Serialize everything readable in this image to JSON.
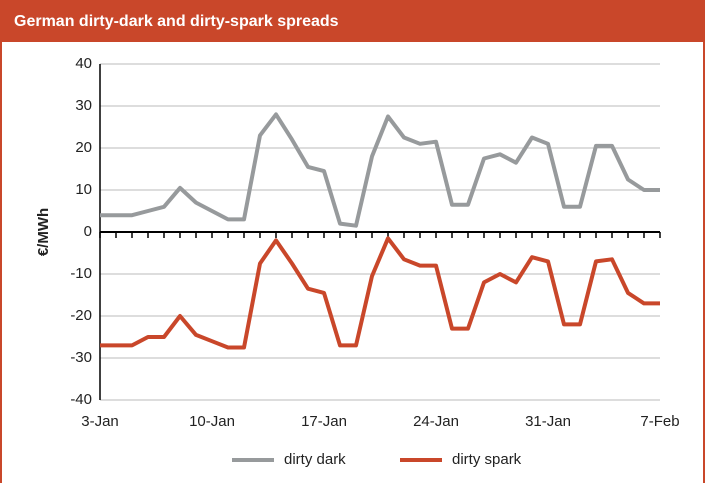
{
  "chart_data": {
    "type": "line",
    "title": "German dirty-dark and dirty-spark spreads",
    "y_label": "€/MWh",
    "categories": [
      "3-Jan",
      null,
      null,
      null,
      null,
      null,
      null,
      "10-Jan",
      null,
      null,
      null,
      null,
      null,
      null,
      "17-Jan",
      null,
      null,
      null,
      null,
      null,
      null,
      "24-Jan",
      null,
      null,
      null,
      null,
      null,
      null,
      "31-Jan",
      null,
      null,
      null,
      null,
      null,
      null,
      "7-Feb"
    ],
    "series": [
      {
        "name": "dirty dark",
        "color": "#979a9c",
        "values": [
          4,
          4,
          4,
          5,
          6,
          10.5,
          7,
          5,
          3,
          3,
          23,
          28,
          22,
          15.5,
          14.5,
          2,
          1.5,
          18,
          27.5,
          22.5,
          21,
          21.5,
          6.5,
          6.5,
          17.5,
          18.5,
          16.5,
          22.5,
          21,
          6,
          6,
          20.5,
          20.5,
          12.5,
          10,
          10
        ]
      },
      {
        "name": "dirty spark",
        "color": "#c9472a",
        "values": [
          -27,
          -27,
          -27,
          -25,
          -25,
          -20,
          -24.5,
          -26,
          -27.5,
          -27.5,
          -7.5,
          -2,
          -7.5,
          -13.5,
          -14.5,
          -27,
          -27,
          -10.5,
          -1.5,
          -6.5,
          -8,
          -8,
          -23,
          -23,
          -12,
          -10,
          -12,
          -6,
          -7,
          -22,
          -22,
          -7,
          -6.5,
          -14.5,
          -17,
          -17
        ]
      }
    ],
    "ylim": [
      -40,
      40
    ],
    "yticks": [
      -40,
      -30,
      -20,
      -10,
      0,
      10,
      20,
      30,
      40
    ],
    "grid": true,
    "legend": "bottom"
  }
}
